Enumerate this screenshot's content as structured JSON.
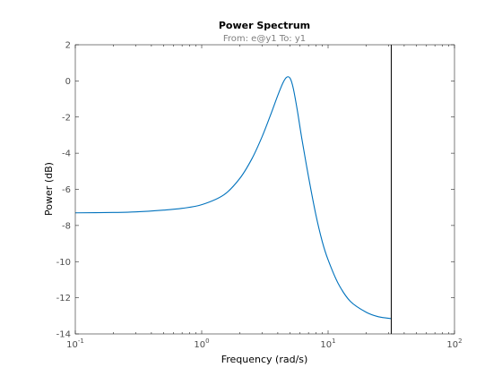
{
  "chart_data": {
    "type": "line",
    "title": "Power Spectrum",
    "subtitle": "From: e@y1  To: y1",
    "xlabel": "Frequency  (rad/s)",
    "ylabel": "Power (dB)",
    "xscale": "log",
    "xlim": [
      0.1,
      100
    ],
    "ylim": [
      -14,
      2
    ],
    "grid": false,
    "x_ticks": [
      {
        "base": "10",
        "exp": "-1",
        "value": 0.1
      },
      {
        "base": "10",
        "exp": "0",
        "value": 1
      },
      {
        "base": "10",
        "exp": "1",
        "value": 10
      },
      {
        "base": "10",
        "exp": "2",
        "value": 100
      }
    ],
    "y_ticks": [
      {
        "label": "2",
        "value": 2
      },
      {
        "label": "0",
        "value": 0
      },
      {
        "label": "-2",
        "value": -2
      },
      {
        "label": "-4",
        "value": -4
      },
      {
        "label": "-6",
        "value": -6
      },
      {
        "label": "-8",
        "value": -8
      },
      {
        "label": "-10",
        "value": -10
      },
      {
        "label": "-12",
        "value": -12
      },
      {
        "label": "-14",
        "value": -14
      }
    ],
    "series": [
      {
        "color": "#0072bd",
        "x": [
          0.1,
          0.2,
          0.3,
          0.5,
          0.7,
          1.0,
          1.5,
          2.0,
          2.5,
          3.0,
          3.5,
          4.0,
          4.4,
          4.7,
          5.0,
          5.3,
          5.7,
          6.2,
          7.0,
          8.0,
          9.0,
          10.0,
          12.0,
          15.0,
          20.0,
          25.0,
          31.6
        ],
        "y": [
          -7.3,
          -7.28,
          -7.25,
          -7.15,
          -7.05,
          -6.85,
          -6.3,
          -5.4,
          -4.3,
          -3.1,
          -1.9,
          -0.8,
          -0.1,
          0.2,
          0.15,
          -0.4,
          -1.6,
          -3.2,
          -5.3,
          -7.4,
          -8.9,
          -9.9,
          -11.2,
          -12.2,
          -12.8,
          -13.05,
          -13.15
        ]
      }
    ],
    "vertical_line": {
      "x": 31.6,
      "color": "#000000"
    }
  }
}
